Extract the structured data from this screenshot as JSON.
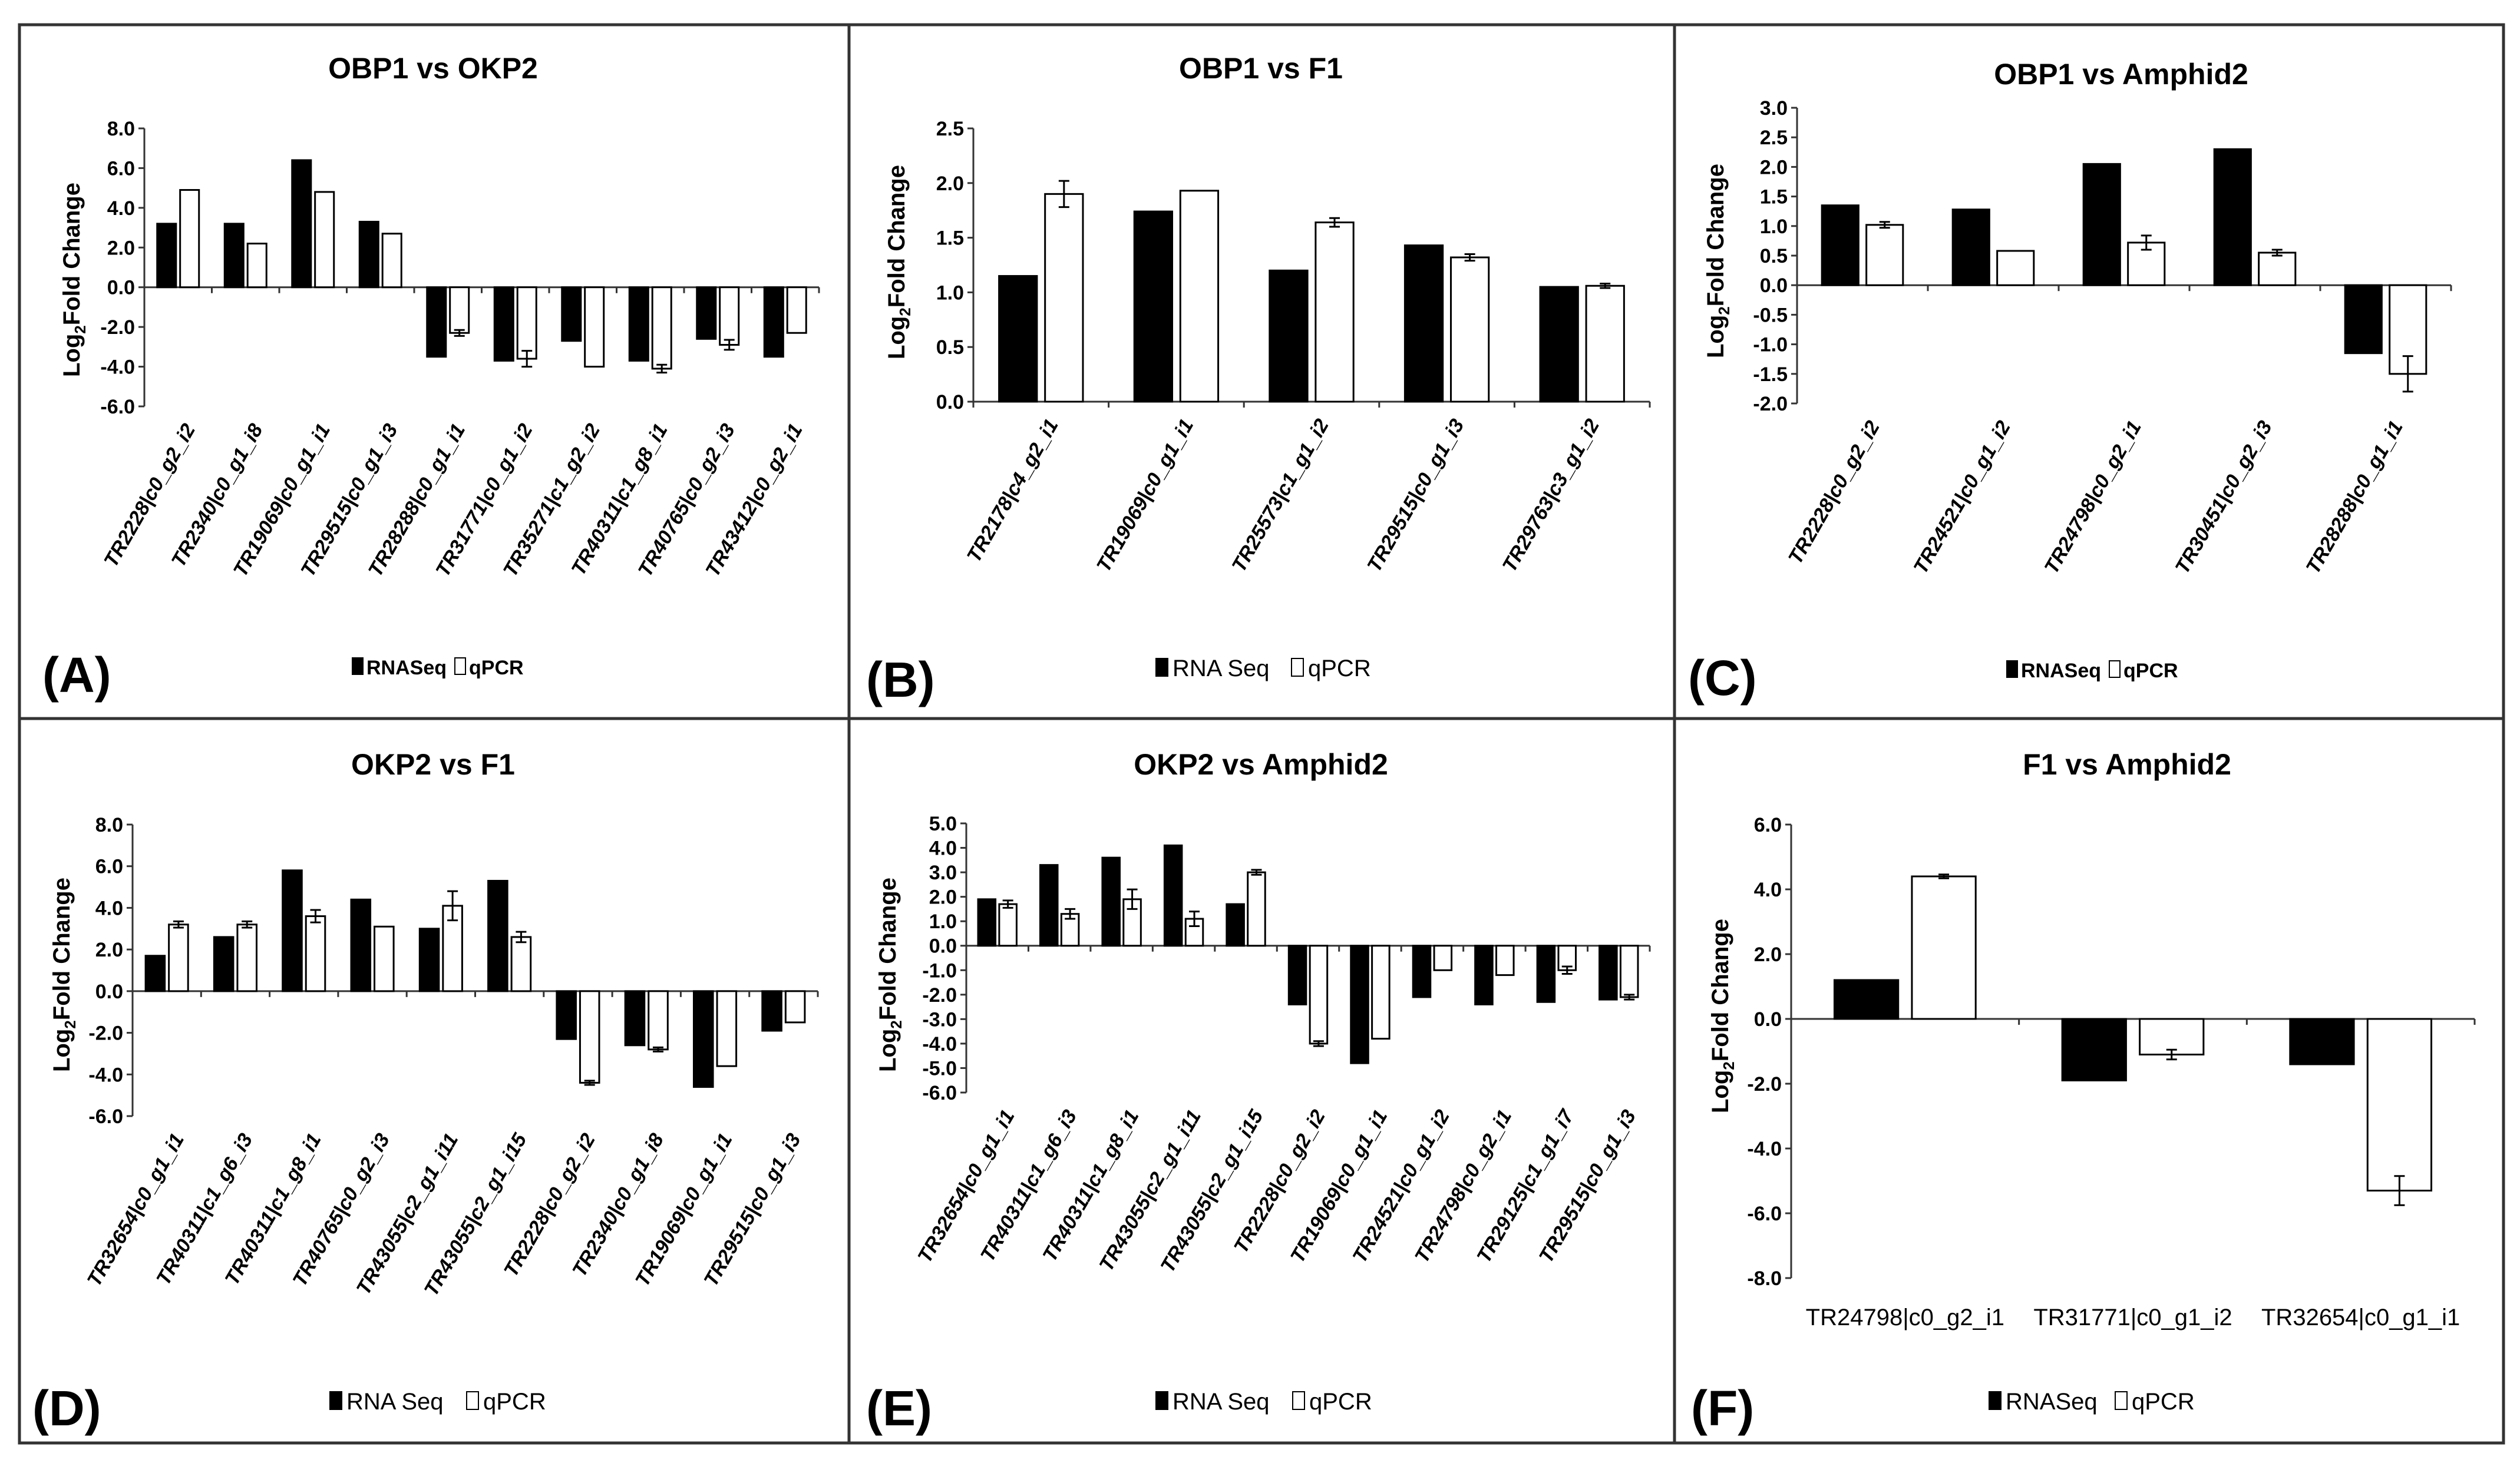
{
  "ylabel": {
    "prefix": "Log",
    "sub": "2",
    "suffix": "Fold Change"
  },
  "chart_data": [
    {
      "type": "bar",
      "panel": "(A)",
      "title": "OBP1 vs OKP2",
      "ylim": [
        -6,
        8
      ],
      "ystep": 2,
      "decimals": 1,
      "categories": [
        "TR2228|c0_g2_i2",
        "TR2340|c0_g1_i8",
        "TR19069|c0_g1_i1",
        "TR29515|c0_g1_i3",
        "TR28288|c0_g1_i1",
        "TR31771|c0_g1_i2",
        "TR35271|c1_g2_i2",
        "TR40311|c1_g8_i1",
        "TR40765|c0_g2_i3",
        "TR43412|c0_g2_i1"
      ],
      "series": [
        {
          "name": "RNA Seq",
          "color": "#000000",
          "values": [
            3.2,
            3.2,
            6.4,
            3.3,
            -3.5,
            -3.7,
            -2.7,
            -3.7,
            -2.6,
            -3.5
          ],
          "errors": [
            0,
            0,
            0,
            0,
            0,
            0,
            0,
            0,
            0,
            0
          ]
        },
        {
          "name": "qPCR",
          "color": "#ffffff",
          "values": [
            4.9,
            2.2,
            4.8,
            2.7,
            -2.3,
            -3.6,
            -4.0,
            -4.1,
            -2.9,
            -2.3
          ],
          "errors": [
            0,
            0,
            0,
            0,
            0.15,
            0.4,
            0,
            0.2,
            0.25,
            0
          ]
        }
      ],
      "legend": [
        "RNASeq",
        "qPCR"
      ]
    },
    {
      "type": "bar",
      "panel": "(B)",
      "title": "OBP1 vs F1",
      "ylim": [
        0,
        2.5
      ],
      "ystep": 0.5,
      "decimals": 1,
      "categories": [
        "TR2178|c4_g2_i1",
        "TR19069|c0_g1_i1",
        "TR25573|c1_g1_i2",
        "TR29515|c0_g1_i3",
        "TR29763|c3_g1_i2"
      ],
      "series": [
        {
          "name": "RNA Seq",
          "color": "#000000",
          "values": [
            1.15,
            1.74,
            1.2,
            1.43,
            1.05
          ],
          "errors": [
            0,
            0,
            0,
            0,
            0
          ]
        },
        {
          "name": "qPCR",
          "color": "#ffffff",
          "values": [
            1.9,
            1.93,
            1.64,
            1.32,
            1.06
          ],
          "errors": [
            0.12,
            0,
            0.04,
            0.03,
            0.02
          ]
        }
      ],
      "legend": [
        "RNA Seq",
        "qPCR"
      ]
    },
    {
      "type": "bar",
      "panel": "(C)",
      "title": "OBP1 vs Amphid2",
      "ylim": [
        -2,
        3
      ],
      "ystep": 0.5,
      "decimals": 1,
      "categories": [
        "TR2228|c0_g2_i2",
        "TR24521|c0_g1_i2",
        "TR24798|c0_g2_i1",
        "TR30451|c0_g2_i3",
        "TR28288|c0_g1_i1"
      ],
      "series": [
        {
          "name": "RNA Seq",
          "color": "#000000",
          "values": [
            1.35,
            1.28,
            2.05,
            2.3,
            -1.15
          ],
          "errors": [
            0,
            0,
            0,
            0,
            0
          ]
        },
        {
          "name": "qPCR",
          "color": "#ffffff",
          "values": [
            1.02,
            0.58,
            0.72,
            0.55,
            -1.5
          ],
          "errors": [
            0.05,
            0,
            0.12,
            0.05,
            0.3
          ]
        }
      ],
      "legend": [
        "RNASeq",
        "qPCR"
      ]
    },
    {
      "type": "bar",
      "panel": "(D)",
      "title": "OKP2 vs F1",
      "ylim": [
        -6,
        8
      ],
      "ystep": 2,
      "decimals": 1,
      "categories": [
        "TR32654|c0_g1_i1",
        "TR40311|c1_g6_i3",
        "TR40311|c1_g8_i1",
        "TR40765|c0_g2_i3",
        "TR43055|c2_g1_i11",
        "TR43055|c2_g1_i15",
        "TR2228|c0_g2_i2",
        "TR2340|c0_g1_i8",
        "TR19069|c0_g1_i1",
        "TR29515|c0_g1_i3"
      ],
      "series": [
        {
          "name": "RNA Seq",
          "color": "#000000",
          "values": [
            1.7,
            2.6,
            5.8,
            4.4,
            3.0,
            5.3,
            -2.3,
            -2.6,
            -4.6,
            -1.9
          ],
          "errors": [
            0,
            0,
            0,
            0,
            0,
            0,
            0,
            0,
            0,
            0
          ]
        },
        {
          "name": "qPCR",
          "color": "#ffffff",
          "values": [
            3.2,
            3.2,
            3.6,
            3.1,
            4.1,
            2.6,
            -4.4,
            -2.8,
            -3.6,
            -1.5
          ],
          "errors": [
            0.15,
            0.15,
            0.3,
            0,
            0.7,
            0.25,
            0.1,
            0.1,
            0,
            0
          ]
        }
      ],
      "legend": [
        "RNA Seq",
        "qPCR"
      ]
    },
    {
      "type": "bar",
      "panel": "(E)",
      "title": "OKP2 vs Amphid2",
      "ylim": [
        -6,
        5
      ],
      "ystep": 1,
      "decimals": 1,
      "categories": [
        "TR32654|c0_g1_i1",
        "TR40311|c1_g6_i3",
        "TR40311|c1_g8_i1",
        "TR43055|c2_g1_i11",
        "TR43055|c2_g1_i15",
        "TR2228|c0_g2_i2",
        "TR19069|c0_g1_i1",
        "TR24521|c0_g1_i2",
        "TR24798|c0_g2_i1",
        "TR29125|c1_g1_i7",
        "TR29515|c0_g1_i3"
      ],
      "series": [
        {
          "name": "RNA Seq",
          "color": "#000000",
          "values": [
            1.9,
            3.3,
            3.6,
            4.1,
            1.7,
            -2.4,
            -4.8,
            -2.1,
            -2.4,
            -2.3,
            -2.2
          ],
          "errors": [
            0,
            0,
            0,
            0,
            0,
            0,
            0,
            0,
            0,
            0,
            0
          ]
        },
        {
          "name": "qPCR",
          "color": "#ffffff",
          "values": [
            1.7,
            1.3,
            1.9,
            1.1,
            3.0,
            -4.0,
            -3.8,
            -1.0,
            -1.2,
            -1.0,
            -2.1
          ],
          "errors": [
            0.15,
            0.2,
            0.4,
            0.3,
            0.1,
            0.1,
            0,
            0,
            0,
            0.15,
            0.1
          ]
        }
      ],
      "legend": [
        "RNA Seq",
        "qPCR"
      ]
    },
    {
      "type": "bar",
      "panel": "(F)",
      "title": "F1 vs Amphid2",
      "ylim": [
        -8,
        6
      ],
      "ystep": 2,
      "decimals": 1,
      "rotate": false,
      "categories": [
        "TR24798|c0_g2_i1",
        "TR31771|c0_g1_i2",
        "TR32654|c0_g1_i1"
      ],
      "series": [
        {
          "name": "RNA Seq",
          "color": "#000000",
          "values": [
            1.2,
            -1.9,
            -1.4
          ],
          "errors": [
            0,
            0,
            0
          ]
        },
        {
          "name": "qPCR",
          "color": "#ffffff",
          "values": [
            4.4,
            -1.1,
            -5.3
          ],
          "errors": [
            0.06,
            0.15,
            0.45
          ]
        }
      ],
      "legend": [
        "RNASeq",
        "qPCR"
      ]
    }
  ]
}
